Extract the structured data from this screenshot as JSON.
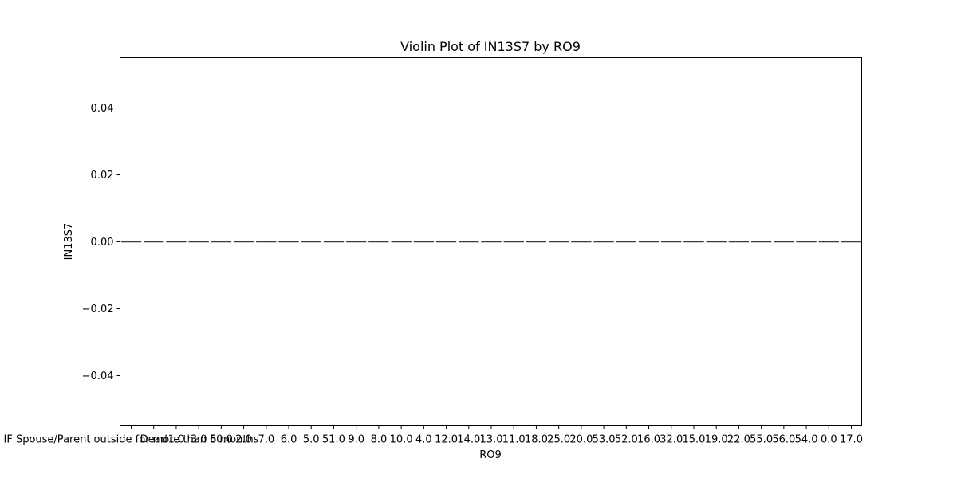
{
  "chart_data": {
    "type": "violin",
    "title": "Violin Plot of IN13S7 by RO9",
    "xlabel": "RO9",
    "ylabel": "IN13S7",
    "ylim": [
      -0.055,
      0.055
    ],
    "yticks": [
      0.04,
      0.02,
      0.0,
      -0.02,
      -0.04
    ],
    "ytick_labels": [
      "0.04",
      "0.02",
      "0.00",
      "−0.02",
      "−0.04"
    ],
    "categories": [
      "IF Spouse/Parent outside for more than 6 months",
      "Dead",
      "1.0",
      "3.0",
      "50.0",
      "2.0",
      "7.0",
      "6.0",
      "5.0",
      "51.0",
      "9.0",
      "8.0",
      "10.0",
      "4.0",
      "12.0",
      "14.0",
      "13.0",
      "11.0",
      "18.0",
      "25.0",
      "20.0",
      "53.0",
      "52.0",
      "16.0",
      "32.0",
      "15.0",
      "19.0",
      "22.0",
      "55.0",
      "56.0",
      "54.0",
      "0.0",
      "17.0"
    ],
    "values": [
      0,
      0,
      0,
      0,
      0,
      0,
      0,
      0,
      0,
      0,
      0,
      0,
      0,
      0,
      0,
      0,
      0,
      0,
      0,
      0,
      0,
      0,
      0,
      0,
      0,
      0,
      0,
      0,
      0,
      0,
      0,
      0,
      0
    ],
    "grid": false,
    "colors": {
      "line": "#3d3d3d",
      "axis": "#000000"
    }
  }
}
